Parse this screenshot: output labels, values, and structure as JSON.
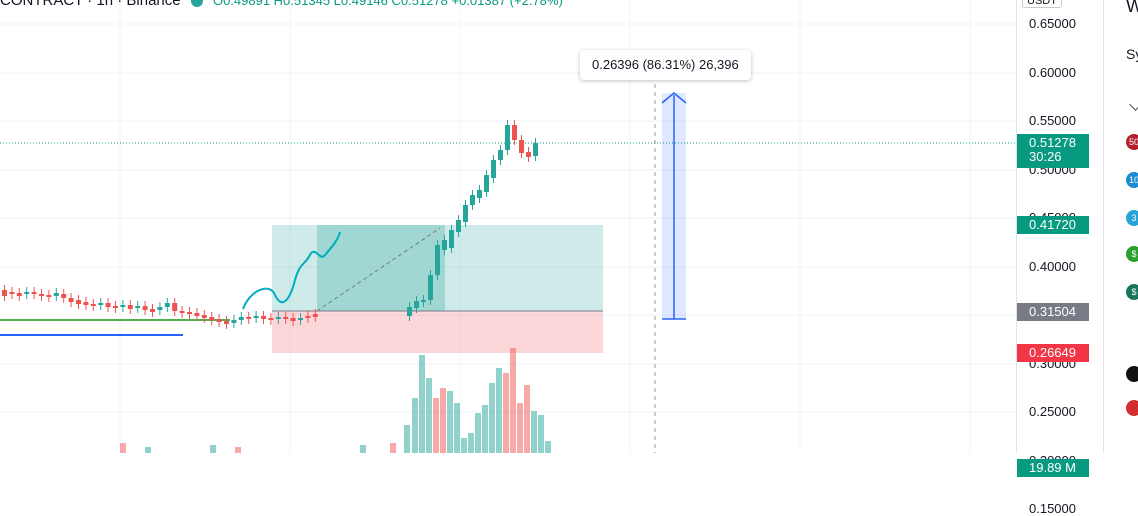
{
  "legend": {
    "symbol_title": "CONTRACT · 1h · Binance",
    "ohlc_text": "O0.49891 H0.51345 L0.49146 C0.51278 +0.01387 (+2.78%)"
  },
  "quote_currency": "USDT",
  "price_axis": {
    "ticks": [
      "0.65000",
      "0.60000",
      "0.55000",
      "0.50000",
      "0.45000",
      "0.40000",
      "0.35000",
      "0.30000",
      "0.25000",
      "0.20000",
      "0.15000"
    ]
  },
  "price_labels": {
    "last_price": "0.51278",
    "countdown": "30:26",
    "target_price": "0.41720",
    "entry_price": "0.31504",
    "stop_price": "0.26649",
    "volume": "19.89 M"
  },
  "colors": {
    "up": "#26a69a",
    "down": "#ef5350",
    "last_price": "#089981",
    "stop": "#f23645",
    "entry": "#787b86",
    "measure": "#2962ff"
  },
  "measure_tooltip": "0.26396 (86.31%) 26,396",
  "right_panel": {
    "partial_header": "W",
    "partial_item": "Sy",
    "badges": [
      {
        "icon": "coin-icon-red",
        "text": "50",
        "color": "#b2202f"
      },
      {
        "icon": "coin-icon-blue",
        "text": "10",
        "color": "#1c8dd1"
      },
      {
        "icon": "coin-icon-blue",
        "text": "3",
        "color": "#29a3d6"
      },
      {
        "icon": "coin-icon-green",
        "text": "$",
        "color": "#2ca02c"
      },
      {
        "icon": "coin-icon-teal",
        "text": "$",
        "color": "#17755e"
      },
      {
        "icon": "coin-icon-black",
        "text": "",
        "color": "#111111"
      },
      {
        "icon": "coin-icon-red",
        "text": "",
        "color": "#d32f2f"
      }
    ]
  }
}
